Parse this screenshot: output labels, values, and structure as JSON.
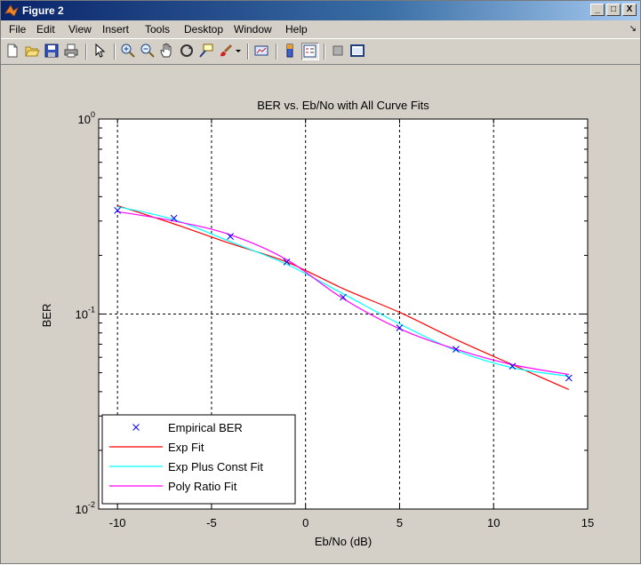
{
  "window": {
    "title": "Figure 2",
    "buttons": [
      "_",
      "□",
      "X"
    ]
  },
  "menubar": {
    "items": [
      "File",
      "Edit",
      "View",
      "Insert",
      "Tools",
      "Desktop",
      "Window",
      "Help"
    ]
  },
  "toolbar": {
    "icons": [
      "new-figure-icon",
      "open-file-icon",
      "save-icon",
      "print-icon",
      "pointer-arrow-icon",
      "zoom-in-icon",
      "zoom-out-icon",
      "pan-hand-icon",
      "rotate-3d-icon",
      "data-cursor-icon",
      "brush-icon",
      "brush-dropdown-icon",
      "link-plot-icon",
      "colorbar-icon",
      "legend-icon",
      "hide-plot-tools-icon",
      "show-plot-tools-icon"
    ]
  },
  "colors": {
    "empirical": "#0000ff",
    "exp_fit": "#ff0000",
    "exp_plus_const": "#00ffff",
    "poly_ratio": "#ff00ff"
  },
  "chart_data": {
    "type": "line",
    "title": "BER vs. Eb/No with All Curve Fits",
    "xlabel": "Eb/No (dB)",
    "ylabel": "BER",
    "xlim": [
      -11,
      15
    ],
    "ylim": [
      0.01,
      1
    ],
    "yscale": "log",
    "grid": "dotted",
    "legend_position": "bottom-left",
    "x_ticks": [
      "-10",
      "-5",
      "0",
      "5",
      "10",
      "15"
    ],
    "y_ticks": [
      {
        "base": "10",
        "exp": "0"
      },
      {
        "base": "10",
        "exp": "-1"
      },
      {
        "base": "10",
        "exp": "-2"
      }
    ],
    "series": [
      {
        "name": "Empirical BER",
        "style": "marker-x",
        "color": "#0000ff",
        "x": [
          -10,
          -7,
          -4,
          -1,
          2,
          5,
          8,
          11,
          14
        ],
        "y": [
          0.34,
          0.31,
          0.25,
          0.185,
          0.122,
          0.085,
          0.066,
          0.054,
          0.047
        ]
      },
      {
        "name": "Exp Fit",
        "style": "line",
        "color": "#ff0000",
        "x": [
          -10,
          -7,
          -4,
          -1,
          2,
          5,
          8,
          11,
          14
        ],
        "y": [
          0.36,
          0.29,
          0.23,
          0.185,
          0.135,
          0.102,
          0.074,
          0.055,
          0.041
        ]
      },
      {
        "name": "Exp Plus Const Fit",
        "style": "line",
        "color": "#00ffff",
        "x": [
          -10,
          -7,
          -4,
          -1,
          2,
          5,
          8,
          11,
          14
        ],
        "y": [
          0.355,
          0.305,
          0.235,
          0.18,
          0.127,
          0.089,
          0.065,
          0.053,
          0.048
        ]
      },
      {
        "name": "Poly Ratio Fit",
        "style": "line",
        "color": "#ff00ff",
        "x": [
          -10,
          -7,
          -4,
          -1,
          2,
          5,
          8,
          11,
          14
        ],
        "y": [
          0.335,
          0.3,
          0.255,
          0.19,
          0.12,
          0.084,
          0.066,
          0.055,
          0.049
        ]
      }
    ]
  }
}
